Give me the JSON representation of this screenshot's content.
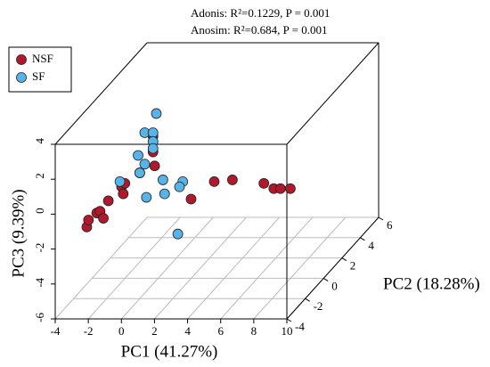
{
  "chart_data": {
    "type": "scatter3d",
    "annotations": [
      "Adonis:  R²=0.1229, P = 0.001",
      "Anosim:  R²=0.684, P = 0.001"
    ],
    "xlabel": "PC1 (41.27%)",
    "ylabel": "PC2 (18.28%)",
    "zlabel": "PC3 (9.39%)",
    "xlim": [
      -4,
      10
    ],
    "xticks": [
      -4,
      -2,
      0,
      2,
      4,
      6,
      8,
      10
    ],
    "ylim": [
      -4,
      6
    ],
    "yticks": [
      -4,
      -2,
      0,
      2,
      4,
      6
    ],
    "zlim": [
      -6,
      4
    ],
    "zticks": [
      -6,
      -4,
      -2,
      0,
      2,
      4
    ],
    "legend": "top-left",
    "series": [
      {
        "name": "NSF",
        "color": "#b2182b",
        "x": [
          -3.2,
          -3.1,
          -2.6,
          -2.4,
          -2.2,
          -1.9,
          -1.1,
          -1.0,
          -0.9,
          0.0,
          0.8,
          0.8,
          0.9,
          3.1,
          4.5,
          5.6,
          7.5,
          8.1,
          8.5,
          9.1
        ],
        "y": [
          -2,
          -2,
          -2,
          -2,
          -2,
          -2,
          -2,
          -2,
          -2,
          -2,
          -2,
          -2,
          -2,
          -2,
          -2,
          -2,
          -2,
          -2,
          -2,
          -2
        ],
        "z": [
          -1.9,
          -1.5,
          -1.1,
          -1.0,
          -1.4,
          -0.4,
          0.4,
          0.0,
          0.6,
          1.2,
          3.3,
          2.4,
          1.6,
          -0.3,
          0.7,
          0.8,
          0.6,
          0.3,
          0.3,
          0.3
        ]
      },
      {
        "name": "SF",
        "color": "#56b4e9",
        "x": [
          1.0,
          0.3,
          0.8,
          0.8,
          0.8,
          -0.1,
          0.3,
          0.0,
          -1.2,
          1.4,
          2.6,
          2.4,
          1.5,
          0.4,
          2.3
        ],
        "y": [
          -2,
          -2,
          -2,
          -2,
          -2,
          -2,
          -2,
          -2,
          -2,
          -2,
          -2,
          -2,
          -2,
          -2,
          -2
        ],
        "z": [
          4.6,
          3.5,
          3.5,
          3.0,
          2.6,
          2.2,
          1.7,
          1.2,
          0.7,
          0.8,
          0.7,
          0.4,
          0.0,
          -0.2,
          -2.3
        ]
      }
    ]
  }
}
